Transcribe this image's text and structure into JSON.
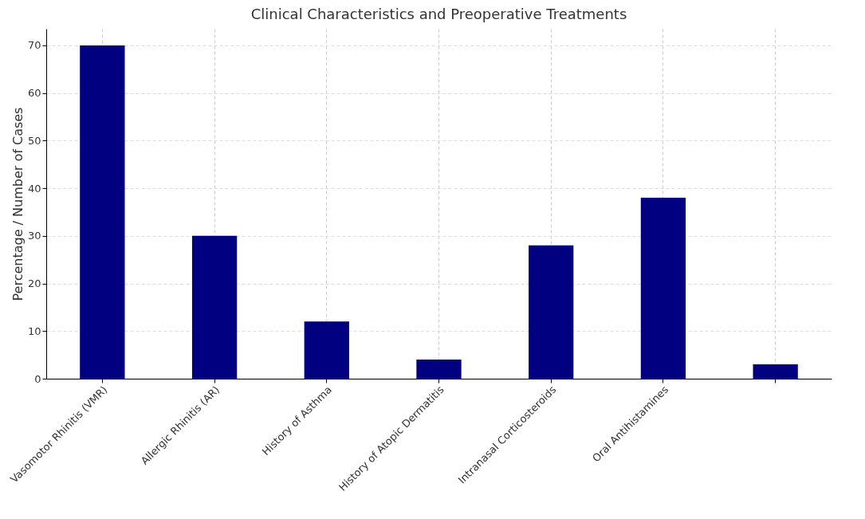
{
  "chart_data": {
    "type": "bar",
    "title": "Clinical Characteristics and Preoperative Treatments",
    "ylabel": "Percentage / Number of Cases",
    "categories": [
      "Vasomotor Rhinitis (VMR)",
      "Allergic Rhinitis (AR)",
      "History of Asthma",
      "History of Atopic Dermatitis",
      "Intranasal Corticosteroids",
      "Oral Antihistamines",
      null
    ],
    "values": [
      70,
      30,
      12,
      4,
      28,
      38,
      3
    ],
    "color": "#000080",
    "ylim": [
      0,
      73.5
    ],
    "yticks": [
      0,
      10,
      20,
      30,
      40,
      50,
      60,
      70
    ],
    "grid": true
  }
}
